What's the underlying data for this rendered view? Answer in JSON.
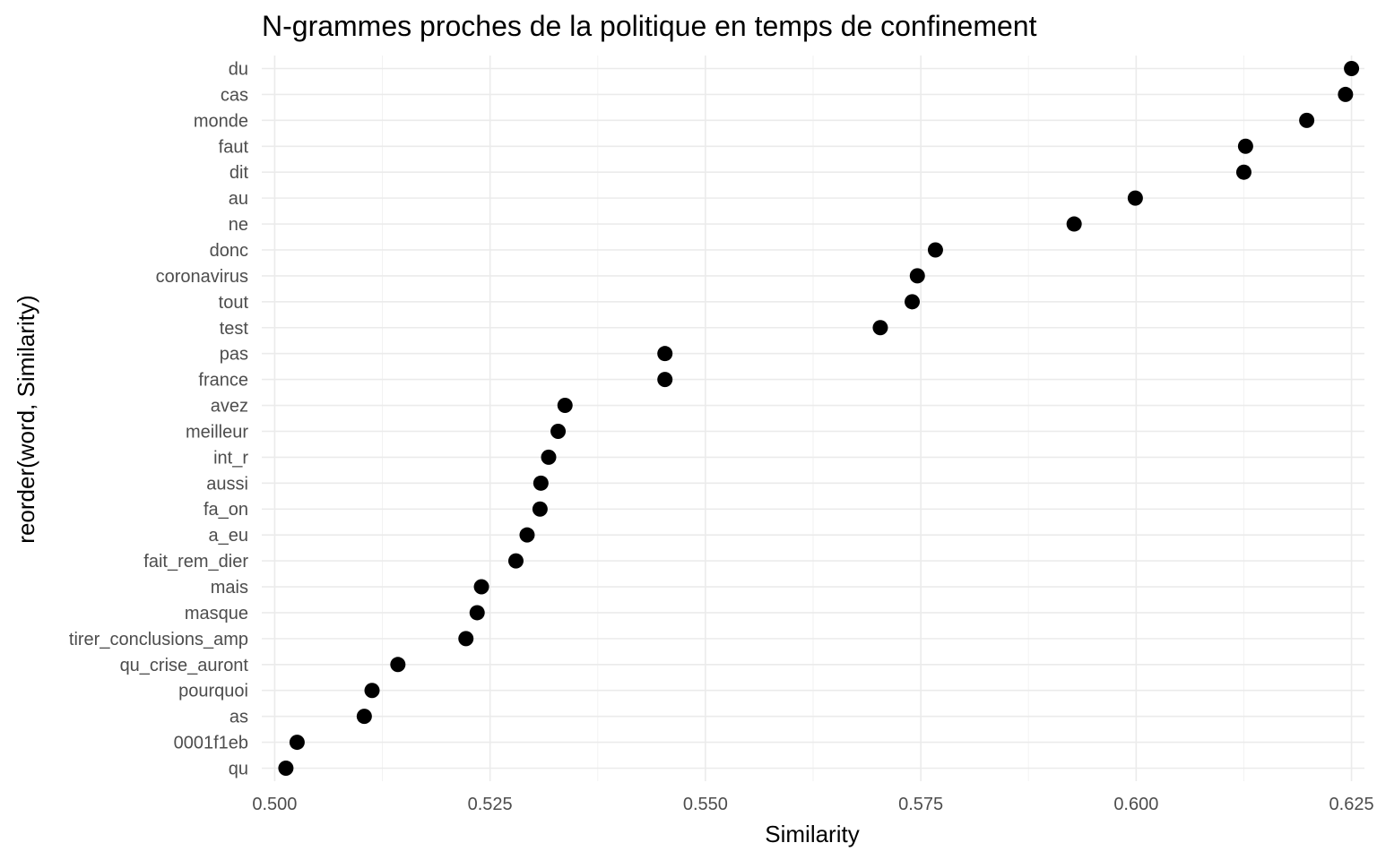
{
  "chart_data": {
    "type": "scatter",
    "title": "N-grammes proches de la politique en temps de confinement",
    "xlabel": "Similarity",
    "ylabel": "reorder(word, Similarity)",
    "xlim": [
      0.4985,
      0.6265
    ],
    "xticks": [
      0.5,
      0.525,
      0.55,
      0.575,
      0.6,
      0.625
    ],
    "xtick_labels": [
      "0.500",
      "0.525",
      "0.550",
      "0.575",
      "0.600",
      "0.625"
    ],
    "grid": true,
    "legend": "none",
    "categories": [
      "qu",
      "0001f1eb",
      "as",
      "pourquoi",
      "qu_crise_auront",
      "tirer_conclusions_amp",
      "masque",
      "mais",
      "fait_rem_dier",
      "a_eu",
      "fa_on",
      "aussi",
      "int_r",
      "meilleur",
      "avez",
      "france",
      "pas",
      "test",
      "tout",
      "coronavirus",
      "donc",
      "ne",
      "au",
      "dit",
      "faut",
      "monde",
      "cas",
      "du"
    ],
    "series": [
      {
        "values": [
          0.5013,
          0.5026,
          0.5104,
          0.5113,
          0.5143,
          0.5222,
          0.5235,
          0.524,
          0.528,
          0.5293,
          0.5308,
          0.5309,
          0.5318,
          0.5329,
          0.5337,
          0.5453,
          0.5453,
          0.5703,
          0.574,
          0.5746,
          0.5767,
          0.5928,
          0.5999,
          0.6125,
          0.6127,
          0.6198,
          0.6243,
          0.625
        ]
      }
    ]
  },
  "colors": {
    "point": "#000000",
    "grid": "#ebebeb",
    "tick_text": "#4d4d4d"
  }
}
